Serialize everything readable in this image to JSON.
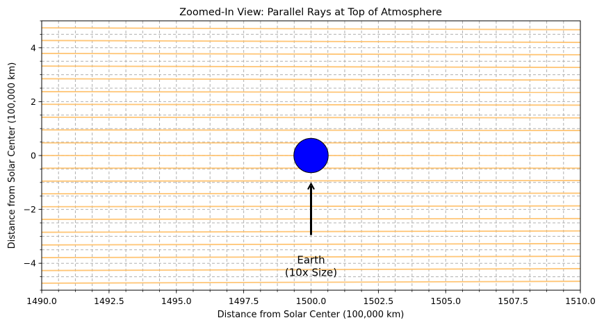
{
  "chart_data": {
    "type": "line",
    "title": "Zoomed-In View: Parallel Rays at Top of Atmosphere",
    "xlabel": "Distance from Solar Center (100,000 km)",
    "ylabel": "Distance from Solar Center (100,000 km)",
    "xlim": [
      1490.0,
      1510.0
    ],
    "ylim": [
      -5,
      5
    ],
    "xticks": [
      1490.0,
      1492.5,
      1495.0,
      1497.5,
      1500.0,
      1502.5,
      1505.0,
      1507.5,
      1510.0
    ],
    "xtick_labels": [
      "1490.0",
      "1492.5",
      "1495.0",
      "1497.5",
      "1500.0",
      "1502.5",
      "1505.0",
      "1507.5",
      "1510.0"
    ],
    "yticks": [
      -4,
      -2,
      0,
      2,
      4
    ],
    "ytick_labels": [
      "−4",
      "−2",
      "0",
      "2",
      "4"
    ],
    "grid": true,
    "ray_color": "#ffbf66",
    "rays": [
      {
        "y_start": -4.74,
        "y_end": -4.67
      },
      {
        "y_start": -4.27,
        "y_end": -4.2
      },
      {
        "y_start": -3.79,
        "y_end": -3.74
      },
      {
        "y_start": -3.32,
        "y_end": -3.27
      },
      {
        "y_start": -2.85,
        "y_end": -2.8
      },
      {
        "y_start": -2.37,
        "y_end": -2.34
      },
      {
        "y_start": -1.9,
        "y_end": -1.87
      },
      {
        "y_start": -1.42,
        "y_end": -1.4
      },
      {
        "y_start": -0.95,
        "y_end": -0.93
      },
      {
        "y_start": -0.47,
        "y_end": -0.47
      },
      {
        "y_start": 0.0,
        "y_end": 0.0
      },
      {
        "y_start": 0.47,
        "y_end": 0.47
      },
      {
        "y_start": 0.95,
        "y_end": 0.93
      },
      {
        "y_start": 1.42,
        "y_end": 1.4
      },
      {
        "y_start": 1.9,
        "y_end": 1.87
      },
      {
        "y_start": 2.37,
        "y_end": 2.34
      },
      {
        "y_start": 2.85,
        "y_end": 2.8
      },
      {
        "y_start": 3.32,
        "y_end": 3.27
      },
      {
        "y_start": 3.79,
        "y_end": 3.74
      },
      {
        "y_start": 4.27,
        "y_end": 4.2
      },
      {
        "y_start": 4.74,
        "y_end": 4.67
      }
    ],
    "earth": {
      "x": 1500.0,
      "y": 0.0,
      "radius": 0.637,
      "fill": "#0000ff",
      "stroke": "#000000"
    },
    "arrow": {
      "from": [
        1500.0,
        -2.95
      ],
      "to": [
        1500.0,
        -1.05
      ]
    },
    "annotation": {
      "lines": [
        "Earth",
        "(10x Size)"
      ],
      "x": 1500.0,
      "y": -4.0
    }
  }
}
